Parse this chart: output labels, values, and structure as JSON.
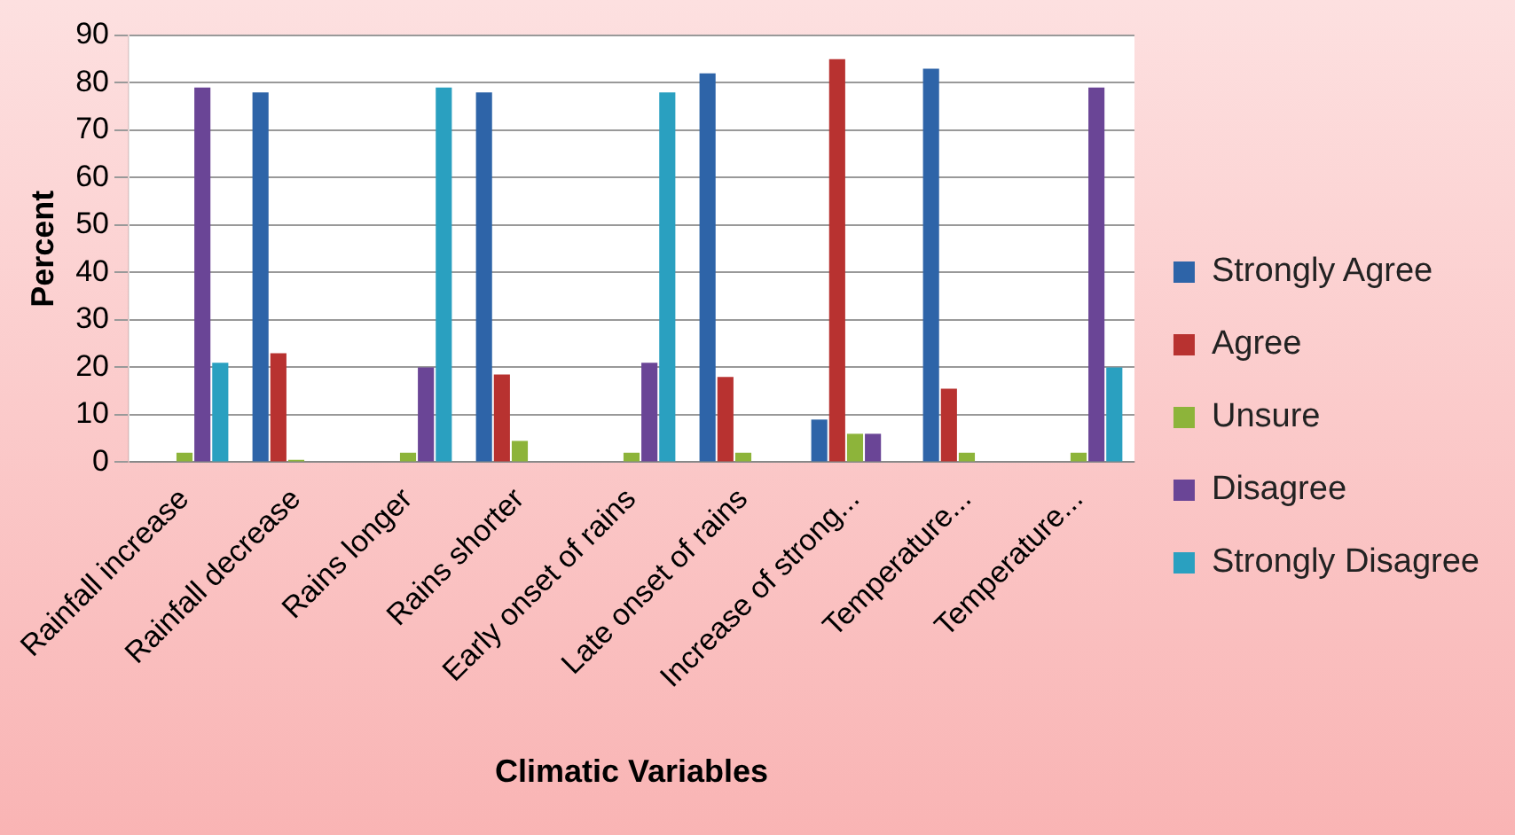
{
  "chart_data": {
    "type": "bar",
    "xlabel": "Climatic Variables",
    "ylabel": "Percent",
    "categories": [
      "Rainfall increase",
      "Rainfall decrease",
      "Rains longer",
      "Rains shorter",
      "Early onset of rains",
      "Late onset of rains",
      "Increase of strong...",
      "Temperature...",
      "Temperature..."
    ],
    "series": [
      {
        "name": "Strongly Agree",
        "color": "#2e64a8",
        "values": [
          0,
          78,
          0,
          78,
          0,
          82,
          9,
          83,
          0
        ]
      },
      {
        "name": "Agree",
        "color": "#b83230",
        "values": [
          0,
          23,
          0,
          18.5,
          0,
          18,
          85,
          15.5,
          0
        ]
      },
      {
        "name": "Unsure",
        "color": "#8db43a",
        "values": [
          2,
          0.5,
          2,
          4.5,
          2,
          2,
          6,
          2,
          2
        ]
      },
      {
        "name": "Disagree",
        "color": "#6a4596",
        "values": [
          79,
          0,
          20,
          0,
          21,
          0,
          6,
          0,
          79
        ]
      },
      {
        "name": "Strongly Disagree",
        "color": "#2aa0c0",
        "values": [
          21,
          0,
          79,
          0,
          78,
          0,
          0,
          0,
          20
        ]
      }
    ],
    "ylim": [
      0,
      90
    ],
    "yticks": [
      0,
      10,
      20,
      30,
      40,
      50,
      60,
      70,
      80,
      90
    ],
    "grid": "y",
    "legend": "right"
  }
}
